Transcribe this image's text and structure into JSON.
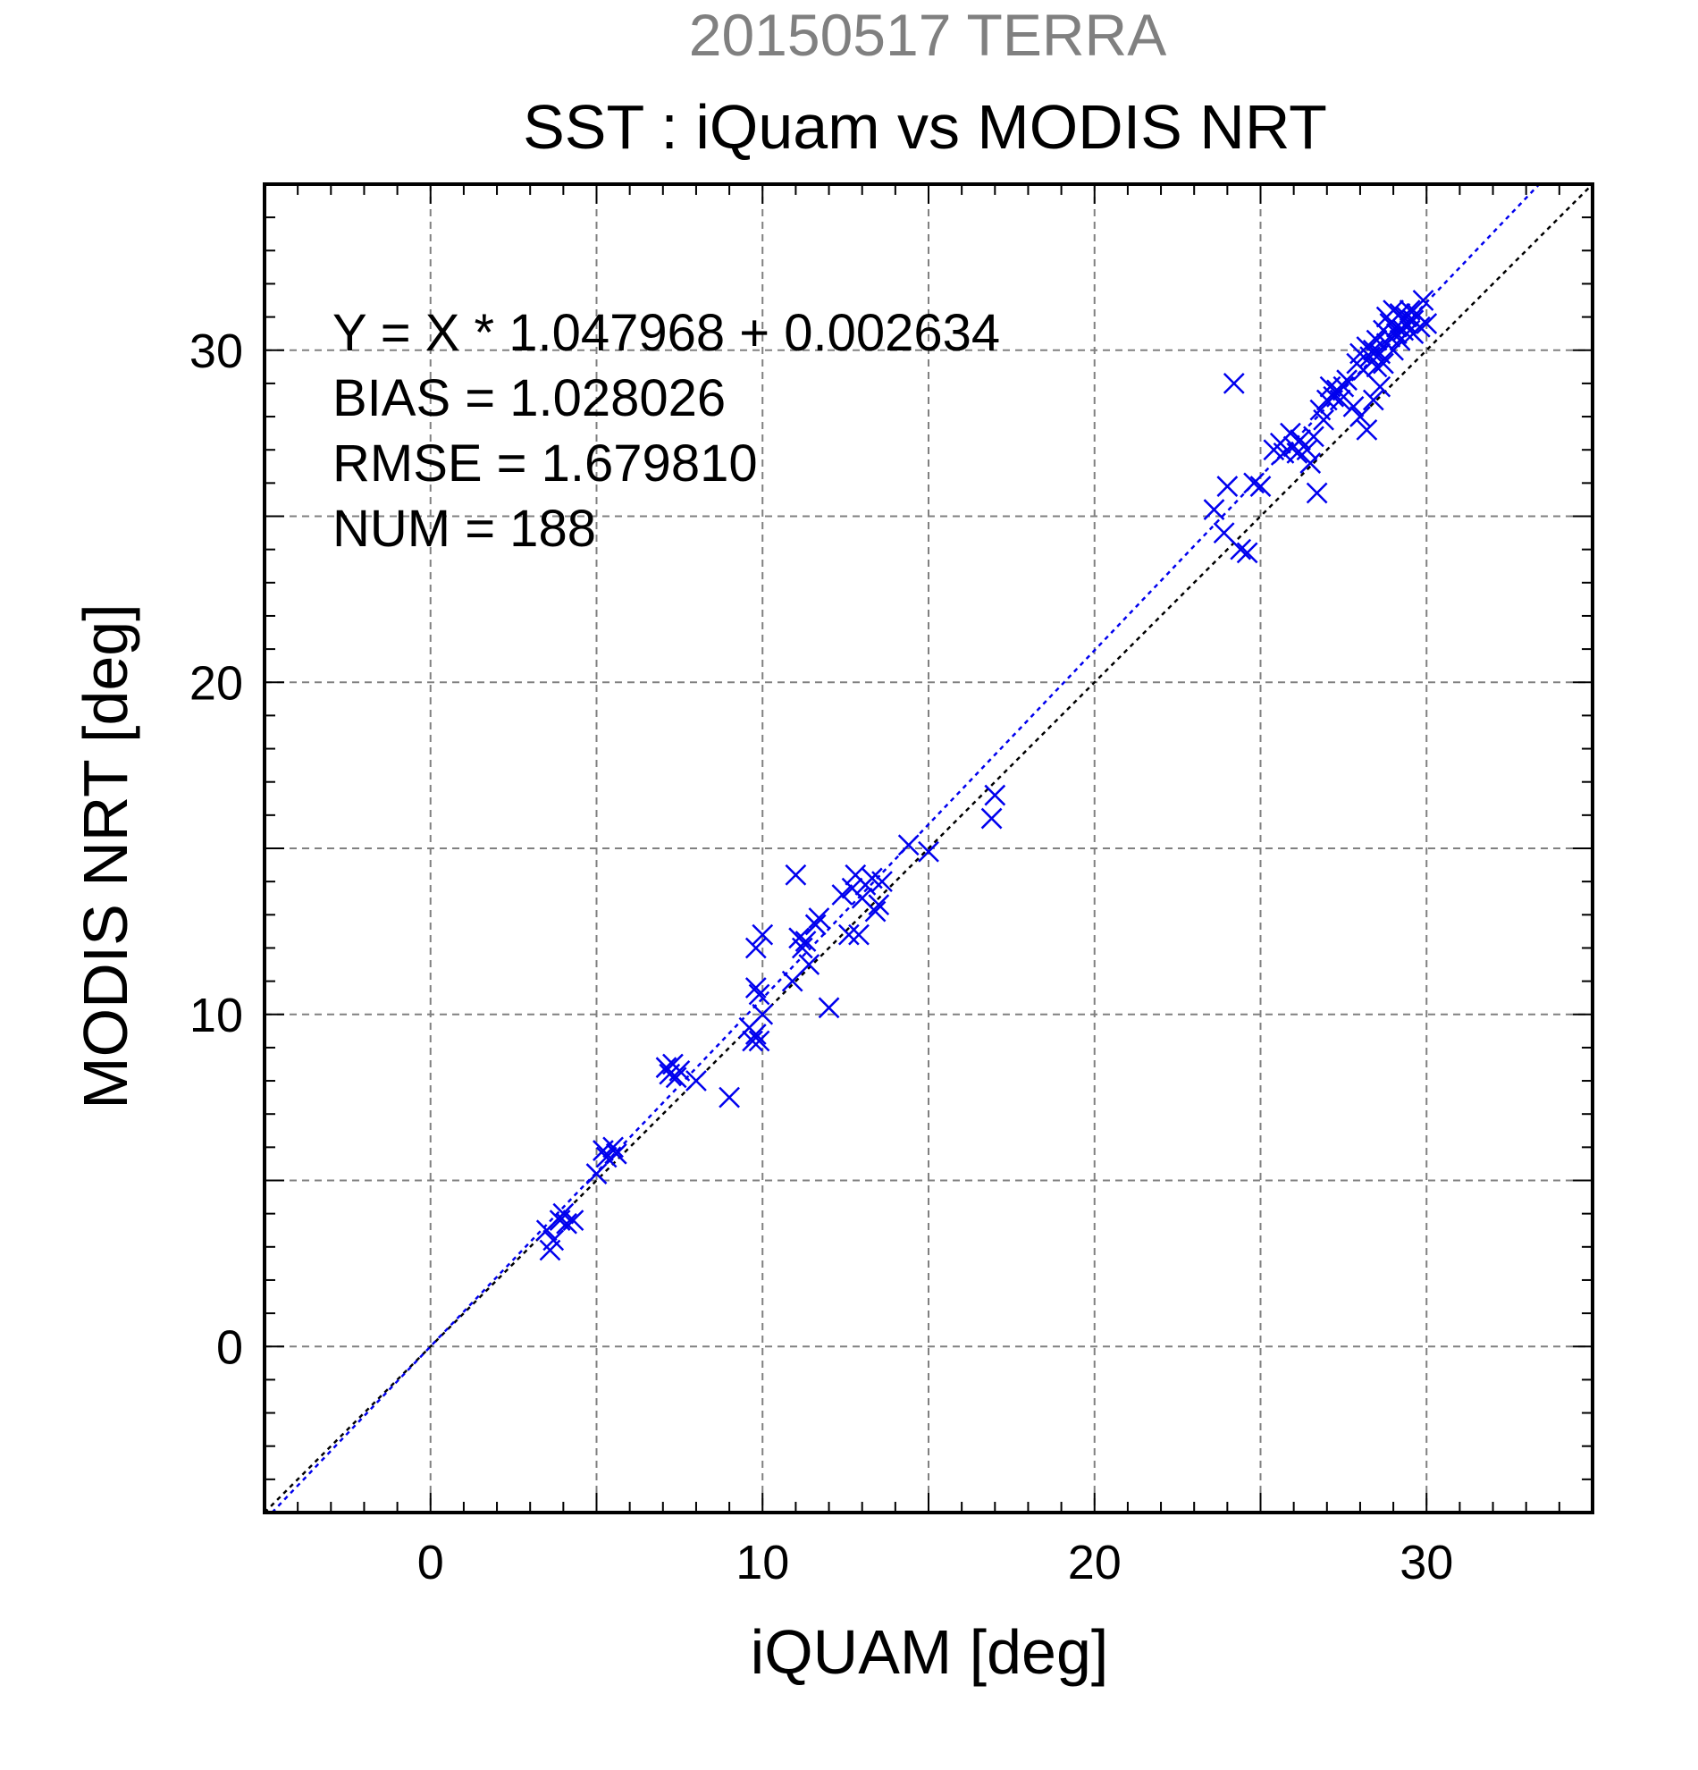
{
  "chart_data": {
    "type": "scatter",
    "suptitle": "20150517 TERRA",
    "title": "SST : iQuam vs MODIS NRT",
    "xlabel": "iQUAM [deg]",
    "ylabel": "MODIS NRT [deg]",
    "xlim": [
      -5,
      35
    ],
    "ylim": [
      -5,
      35
    ],
    "xticks": [
      0,
      10,
      20,
      30
    ],
    "yticks": [
      0,
      10,
      20,
      30
    ],
    "minor_step": 1,
    "grid": true,
    "grid_step": 5,
    "stats": {
      "equation": "Y = X * 1.047968 + 0.002634",
      "bias": "BIAS = 1.028026",
      "rmse": "RMSE = 1.679810",
      "num": "NUM = 188"
    },
    "fit": {
      "slope": 1.047968,
      "intercept": 0.002634
    },
    "colors": {
      "points": "#0000ee",
      "fit_line": "#0000ee",
      "identity_line": "#000000",
      "suptitle": "#808080",
      "grid": "#808080"
    },
    "series": [
      {
        "marker": "x",
        "points": [
          [
            3.5,
            3.5
          ],
          [
            3.6,
            2.9
          ],
          [
            3.7,
            3.2
          ],
          [
            3.9,
            3.8
          ],
          [
            4.0,
            4.0
          ],
          [
            4.1,
            3.7
          ],
          [
            4.3,
            3.8
          ],
          [
            5.0,
            5.2
          ],
          [
            5.2,
            5.9
          ],
          [
            5.3,
            5.7
          ],
          [
            5.5,
            6.0
          ],
          [
            5.6,
            5.8
          ],
          [
            7.1,
            8.4
          ],
          [
            7.2,
            8.2
          ],
          [
            7.3,
            8.5
          ],
          [
            7.4,
            8.1
          ],
          [
            7.5,
            8.3
          ],
          [
            8.0,
            8.0
          ],
          [
            9.0,
            7.5
          ],
          [
            9.6,
            9.6
          ],
          [
            9.7,
            9.2
          ],
          [
            9.8,
            9.4
          ],
          [
            9.9,
            9.2
          ],
          [
            9.8,
            10.8
          ],
          [
            9.9,
            10.6
          ],
          [
            10.0,
            10.0
          ],
          [
            9.8,
            12.0
          ],
          [
            10.0,
            12.4
          ],
          [
            10.9,
            11.0
          ],
          [
            11.0,
            14.2
          ],
          [
            11.1,
            12.3
          ],
          [
            11.2,
            12.0
          ],
          [
            11.3,
            12.2
          ],
          [
            11.4,
            11.5
          ],
          [
            11.6,
            12.7
          ],
          [
            11.7,
            12.9
          ],
          [
            12.0,
            10.2
          ],
          [
            12.4,
            13.6
          ],
          [
            12.6,
            12.4
          ],
          [
            12.7,
            13.8
          ],
          [
            12.8,
            14.2
          ],
          [
            12.9,
            12.4
          ],
          [
            13.0,
            13.5
          ],
          [
            13.1,
            13.9
          ],
          [
            13.3,
            14.1
          ],
          [
            13.4,
            13.1
          ],
          [
            13.5,
            13.3
          ],
          [
            13.6,
            14.0
          ],
          [
            14.4,
            15.1
          ],
          [
            15.0,
            14.9
          ],
          [
            16.9,
            15.9
          ],
          [
            17.0,
            16.6
          ],
          [
            23.6,
            25.2
          ],
          [
            23.9,
            24.5
          ],
          [
            24.0,
            25.9
          ],
          [
            24.2,
            29.0
          ],
          [
            24.4,
            24.0
          ],
          [
            24.6,
            23.9
          ],
          [
            24.8,
            26.0
          ],
          [
            25.0,
            25.9
          ],
          [
            25.4,
            27.0
          ],
          [
            25.6,
            27.2
          ],
          [
            25.7,
            26.9
          ],
          [
            25.9,
            27.5
          ],
          [
            26.0,
            27.1
          ],
          [
            26.1,
            26.9
          ],
          [
            26.2,
            27.3
          ],
          [
            26.4,
            27.0
          ],
          [
            26.5,
            26.6
          ],
          [
            26.6,
            27.4
          ],
          [
            26.7,
            25.7
          ],
          [
            26.8,
            28.2
          ],
          [
            26.9,
            27.9
          ],
          [
            27.0,
            28.5
          ],
          [
            27.1,
            28.9
          ],
          [
            27.2,
            28.6
          ],
          [
            27.3,
            28.8
          ],
          [
            27.4,
            28.5
          ],
          [
            27.5,
            28.9
          ],
          [
            27.6,
            29.1
          ],
          [
            27.8,
            28.3
          ],
          [
            27.9,
            29.6
          ],
          [
            28.0,
            29.9
          ],
          [
            28.0,
            28.0
          ],
          [
            28.1,
            29.4
          ],
          [
            28.2,
            30.1
          ],
          [
            28.2,
            27.6
          ],
          [
            28.3,
            29.8
          ],
          [
            28.4,
            30.0
          ],
          [
            28.4,
            28.5
          ],
          [
            28.5,
            29.5
          ],
          [
            28.5,
            30.3
          ],
          [
            28.6,
            29.9
          ],
          [
            28.6,
            28.9
          ],
          [
            28.7,
            30.6
          ],
          [
            28.7,
            29.6
          ],
          [
            28.8,
            31.0
          ],
          [
            28.8,
            30.2
          ],
          [
            28.9,
            30.8
          ],
          [
            28.9,
            30.4
          ],
          [
            29.0,
            31.2
          ],
          [
            29.0,
            30.0
          ],
          [
            29.1,
            30.7
          ],
          [
            29.1,
            30.5
          ],
          [
            29.2,
            31.1
          ],
          [
            29.2,
            30.3
          ],
          [
            29.3,
            30.9
          ],
          [
            29.3,
            30.6
          ],
          [
            29.4,
            31.0
          ],
          [
            29.4,
            30.8
          ],
          [
            29.5,
            30.6
          ],
          [
            29.5,
            31.2
          ],
          [
            29.6,
            30.9
          ],
          [
            29.6,
            30.5
          ],
          [
            29.7,
            31.1
          ],
          [
            29.8,
            30.7
          ],
          [
            29.9,
            31.5
          ],
          [
            30.0,
            30.8
          ]
        ]
      }
    ]
  }
}
